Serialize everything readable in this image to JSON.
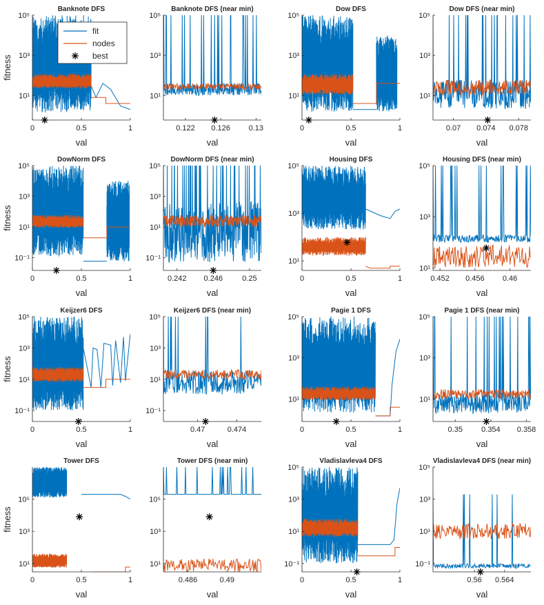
{
  "colors": {
    "fit": "#0072BD",
    "nodes": "#D95319",
    "best": "#000000",
    "axis": "#262626"
  },
  "legend": {
    "entries": [
      "fit",
      "nodes",
      "best"
    ]
  },
  "chart_data": [
    {
      "type": "line",
      "title": "Banknote DFS",
      "xlabel": "val",
      "ylabel": "fitness",
      "xlim": [
        0,
        1
      ],
      "ylim": [
        0.6,
        100000
      ],
      "xticks": [
        0,
        0.5,
        1
      ],
      "xticklabels": [
        "0",
        "0.5",
        "1"
      ],
      "yticks": [
        10,
        1000,
        100000
      ],
      "yticklabels": [
        "10¹",
        "10³",
        "10⁵"
      ],
      "best": {
        "x": 0.125,
        "y": 0.6
      },
      "style": "dense-left",
      "dense_end": 0.6,
      "fit_band": [
        0.8,
        100000
      ],
      "nodes_band": [
        20,
        120
      ],
      "fit_tail": [
        [
          0.6,
          30
        ],
        [
          0.65,
          8
        ],
        [
          0.72,
          40
        ],
        [
          0.8,
          20
        ],
        [
          0.9,
          3
        ],
        [
          1,
          2
        ]
      ],
      "nodes_tail": [
        [
          0.6,
          8
        ],
        [
          0.75,
          8
        ],
        [
          0.75,
          4
        ],
        [
          1,
          4
        ]
      ],
      "legend": true
    },
    {
      "type": "line",
      "title": "Banknote DFS (near min)",
      "xlabel": "val",
      "ylabel": "",
      "xlim": [
        0.1195,
        0.1306
      ],
      "ylim": [
        0.6,
        100000
      ],
      "xticks": [
        0.122,
        0.126,
        0.13
      ],
      "xticklabels": [
        "0.122",
        "0.126",
        "0.13"
      ],
      "yticks": [
        10,
        1000,
        100000
      ],
      "yticklabels": [
        "10¹",
        "10³",
        "10⁵"
      ],
      "best": {
        "x": 0.1253,
        "y": 0.6
      },
      "style": "sparse",
      "fit_base": [
        10,
        40
      ],
      "nodes_base": [
        20,
        40
      ]
    },
    {
      "type": "line",
      "title": "Dow DFS",
      "xlabel": "val",
      "ylabel": "",
      "xlim": [
        0,
        1
      ],
      "ylim": [
        0.6,
        100000
      ],
      "xticks": [
        0,
        0.5,
        1
      ],
      "xticklabels": [
        "0",
        "0.5",
        "1"
      ],
      "yticks": [
        10,
        1000,
        100000
      ],
      "yticklabels": [
        "10¹",
        "10³",
        "10⁵"
      ],
      "best": {
        "x": 0.07,
        "y": 0.6
      },
      "style": "dense-split",
      "dense_end": 0.52,
      "block": [
        0.76,
        0.97
      ],
      "block_band": [
        1,
        10000
      ],
      "fit_band": [
        0.8,
        100000
      ],
      "nodes_band": [
        10,
        120
      ],
      "nodes_tail": [
        [
          0.52,
          4
        ],
        [
          0.76,
          4
        ],
        [
          0.76,
          40
        ],
        [
          1,
          40
        ]
      ]
    },
    {
      "type": "line",
      "title": "Dow DFS (near min)",
      "xlabel": "val",
      "ylabel": "",
      "xlim": [
        0.0675,
        0.0795
      ],
      "ylim": [
        0.6,
        100000
      ],
      "xticks": [
        0.07,
        0.074,
        0.078
      ],
      "xticklabels": [
        "0.07",
        "0.074",
        "0.078"
      ],
      "yticks": [
        10,
        1000,
        100000
      ],
      "yticklabels": [
        "10¹",
        "10³",
        "10⁵"
      ],
      "best": {
        "x": 0.0742,
        "y": 0.6
      },
      "style": "sparse",
      "fit_base": [
        2,
        60
      ],
      "nodes_base": [
        10,
        60
      ]
    },
    {
      "type": "line",
      "title": "DowNorm DFS",
      "xlabel": "val",
      "ylabel": "fitness",
      "xlim": [
        0,
        1
      ],
      "ylim": [
        0.015,
        100000
      ],
      "xticks": [
        0,
        0.5,
        1
      ],
      "xticklabels": [
        "0",
        "0.5",
        "1"
      ],
      "yticks": [
        0.1,
        10,
        1000,
        100000
      ],
      "yticklabels": [
        "10⁻¹",
        "10¹",
        "10³",
        "10⁵"
      ],
      "best": {
        "x": 0.245,
        "y": 0.015
      },
      "style": "dense-split",
      "dense_end": 0.52,
      "block": [
        0.76,
        0.99
      ],
      "block_band": [
        0.03,
        10000
      ],
      "fit_band": [
        0.06,
        100000
      ],
      "nodes_band": [
        8,
        60
      ],
      "nodes_tail": [
        [
          0.52,
          2
        ],
        [
          0.76,
          2
        ],
        [
          0.76,
          10
        ],
        [
          1,
          10
        ]
      ]
    },
    {
      "type": "line",
      "title": "DowNorm DFS (near min)",
      "xlabel": "val",
      "ylabel": "",
      "xlim": [
        0.2405,
        0.2513
      ],
      "ylim": [
        0.015,
        100000
      ],
      "xticks": [
        0.242,
        0.246,
        0.25
      ],
      "xticklabels": [
        "0.242",
        "0.246",
        "0.25"
      ],
      "yticks": [
        0.1,
        10,
        1000,
        100000
      ],
      "yticklabels": [
        "10⁻¹",
        "10¹",
        "10³",
        "10⁵"
      ],
      "best": {
        "x": 0.246,
        "y": 0.015
      },
      "style": "dense-noisy",
      "fit_base": [
        0.05,
        500
      ],
      "nodes_base": [
        10,
        60
      ]
    },
    {
      "type": "line",
      "title": "Housing DFS",
      "xlabel": "val",
      "ylabel": "",
      "xlim": [
        0,
        1
      ],
      "ylim": [
        4,
        100000
      ],
      "xticks": [
        0,
        0.5,
        1
      ],
      "xticklabels": [
        "0",
        "0.5",
        "1"
      ],
      "yticks": [
        10,
        1000,
        100000
      ],
      "yticklabels": [
        "10¹",
        "10³",
        "10⁵"
      ],
      "best": {
        "x": 0.46,
        "y": 60
      },
      "style": "dense-housing",
      "dense_end": 0.65,
      "fit_band": [
        150,
        100000
      ],
      "nodes_band": [
        15,
        100
      ],
      "fit_tail": [
        [
          0.65,
          1500
        ],
        [
          0.8,
          800
        ],
        [
          0.9,
          600
        ],
        [
          0.95,
          1200
        ],
        [
          1,
          1500
        ]
      ],
      "nodes_tail": [
        [
          0.65,
          6
        ],
        [
          0.7,
          5
        ],
        [
          0.9,
          5
        ],
        [
          0.9,
          6
        ],
        [
          1,
          6
        ]
      ]
    },
    {
      "type": "line",
      "title": "Housing DFS (near min)",
      "xlabel": "val",
      "ylabel": "",
      "xlim": [
        0.4512,
        0.4624
      ],
      "ylim": [
        8,
        100000
      ],
      "xticks": [
        0.452,
        0.456,
        0.46
      ],
      "xticklabels": [
        "0.452",
        "0.456",
        "0.46"
      ],
      "yticks": [
        10,
        1000,
        100000
      ],
      "yticklabels": [
        "10¹",
        "10³",
        "10⁵"
      ],
      "best": {
        "x": 0.4573,
        "y": 60
      },
      "style": "sparse-housing",
      "fit_base": [
        100,
        200
      ],
      "nodes_base": [
        10,
        80
      ]
    },
    {
      "type": "line",
      "title": "Keijzer6 DFS",
      "xlabel": "val",
      "ylabel": "fitness",
      "xlim": [
        0,
        1
      ],
      "ylim": [
        0.02,
        100000
      ],
      "xticks": [
        0,
        0.5,
        1
      ],
      "xticklabels": [
        "0",
        "0.5",
        "1"
      ],
      "yticks": [
        0.1,
        10,
        1000,
        100000
      ],
      "yticklabels": [
        "10⁻¹",
        "10¹",
        "10³",
        "10⁵"
      ],
      "best": {
        "x": 0.47,
        "y": 0.02
      },
      "style": "dense-left",
      "dense_end": 0.52,
      "fit_band": [
        0.05,
        100000
      ],
      "nodes_band": [
        6,
        60
      ],
      "fit_tail": [
        [
          0.52,
          1000
        ],
        [
          0.6,
          3
        ],
        [
          0.62,
          1000
        ],
        [
          0.66,
          800
        ],
        [
          0.7,
          3
        ],
        [
          0.73,
          2000
        ],
        [
          0.8,
          1500
        ],
        [
          0.82,
          4
        ],
        [
          0.85,
          3000
        ],
        [
          0.9,
          6
        ],
        [
          0.93,
          5000
        ],
        [
          0.95,
          8
        ],
        [
          1,
          8000
        ]
      ],
      "nodes_tail": [
        [
          0.52,
          3
        ],
        [
          0.75,
          3
        ],
        [
          0.75,
          10
        ],
        [
          1,
          10
        ]
      ]
    },
    {
      "type": "line",
      "title": "Keijzer6 DFS (near min)",
      "xlabel": "val",
      "ylabel": "",
      "xlim": [
        0.4665,
        0.4765
      ],
      "ylim": [
        0.02,
        100000
      ],
      "xticks": [
        0.47,
        0.474
      ],
      "xticklabels": [
        "0.47",
        "0.474"
      ],
      "yticks": [
        0.1,
        10,
        1000,
        100000
      ],
      "yticklabels": [
        "10⁻¹",
        "10¹",
        "10³",
        "10⁵"
      ],
      "best": {
        "x": 0.4708,
        "y": 0.02
      },
      "style": "keijzer-near",
      "fit_base": [
        1,
        40
      ],
      "nodes_base": [
        10,
        40
      ]
    },
    {
      "type": "line",
      "title": "Pagie 1 DFS",
      "xlabel": "val",
      "ylabel": "",
      "xlim": [
        0,
        1
      ],
      "ylim": [
        0.8,
        100000
      ],
      "xticks": [
        0,
        0.5,
        1
      ],
      "xticklabels": [
        "0",
        "0.5",
        "1"
      ],
      "yticks": [
        10,
        1000,
        100000
      ],
      "yticklabels": [
        "10¹",
        "10³",
        "10⁵"
      ],
      "best": {
        "x": 0.35,
        "y": 0.8
      },
      "style": "dense-left",
      "dense_end": 0.75,
      "fit_band": [
        1.2,
        100000
      ],
      "nodes_band": [
        8,
        40
      ],
      "fit_tail": [
        [
          0.75,
          1.5
        ],
        [
          0.9,
          1.5
        ],
        [
          0.92,
          50
        ],
        [
          0.96,
          2000
        ],
        [
          1,
          8000
        ]
      ],
      "nodes_tail": [
        [
          0.75,
          1.5
        ],
        [
          0.9,
          1.5
        ],
        [
          0.9,
          4
        ],
        [
          1,
          4
        ]
      ]
    },
    {
      "type": "line",
      "title": "Pagie 1 DFS (near min)",
      "xlabel": "val",
      "ylabel": "",
      "xlim": [
        0.3475,
        0.3585
      ],
      "ylim": [
        0.8,
        100000
      ],
      "xticks": [
        0.35,
        0.354,
        0.358
      ],
      "xticklabels": [
        "0.35",
        "0.354",
        "0.358"
      ],
      "yticks": [
        10,
        1000,
        100000
      ],
      "yticklabels": [
        "10¹",
        "10³",
        "10⁵"
      ],
      "best": {
        "x": 0.3535,
        "y": 0.8
      },
      "style": "sparse",
      "fit_base": [
        2,
        20
      ],
      "nodes_base": [
        10,
        30
      ]
    },
    {
      "type": "line",
      "title": "Tower DFS",
      "xlabel": "val",
      "ylabel": "fitness",
      "xlim": [
        0,
        1
      ],
      "ylim": [
        3,
        10000000
      ],
      "xticks": [
        0,
        0.5,
        1
      ],
      "xticklabels": [
        "0",
        "0.5",
        "1"
      ],
      "yticks": [
        10,
        1000,
        100000
      ],
      "yticklabels": [
        "10¹",
        "10³",
        "10⁵"
      ],
      "best": {
        "x": 0.48,
        "y": 8000
      },
      "style": "dense-tower",
      "dense_end": 0.35,
      "fit_band": [
        100000,
        10000000
      ],
      "nodes_band": [
        5,
        40
      ],
      "fit_tail": [
        [
          0.5,
          200000
        ],
        [
          0.9,
          200000
        ],
        [
          0.95,
          150000
        ],
        [
          1,
          100000
        ]
      ],
      "nodes_tail": [
        [
          0.6,
          3
        ],
        [
          0.95,
          3
        ],
        [
          0.95,
          6
        ],
        [
          1,
          6
        ]
      ]
    },
    {
      "type": "line",
      "title": "Tower DFS (near min)",
      "xlabel": "val",
      "ylabel": "",
      "xlim": [
        0.4835,
        0.4935
      ],
      "ylim": [
        3,
        10000000
      ],
      "xticks": [
        0.486,
        0.49
      ],
      "xticklabels": [
        "0.486",
        "0.49"
      ],
      "yticks": [
        10,
        1000,
        100000
      ],
      "yticklabels": [
        "10¹",
        "10³",
        "10⁵"
      ],
      "best": {
        "x": 0.4882,
        "y": 8000
      },
      "style": "sparse-tower",
      "fit_base": [
        200000,
        200000
      ],
      "nodes_base": [
        3,
        20
      ]
    },
    {
      "type": "line",
      "title": "Vladislavleva4 DFS",
      "xlabel": "val",
      "ylabel": "",
      "xlim": [
        0,
        1
      ],
      "ylim": [
        0.03,
        100000
      ],
      "xticks": [
        0,
        0.5,
        1
      ],
      "xticklabels": [
        "0",
        "0.5",
        "1"
      ],
      "yticks": [
        0.1,
        10,
        1000,
        100000
      ],
      "yticklabels": [
        "10⁻¹",
        "10¹",
        "10³",
        "10⁵"
      ],
      "best": {
        "x": 0.56,
        "y": 0.03
      },
      "style": "dense-left",
      "dense_end": 0.57,
      "fit_band": [
        0.05,
        100000
      ],
      "nodes_band": [
        4,
        60
      ],
      "fit_tail": [
        [
          0.57,
          1.5
        ],
        [
          0.9,
          1.5
        ],
        [
          0.94,
          3
        ],
        [
          0.97,
          500
        ],
        [
          1,
          5000
        ]
      ],
      "nodes_tail": [
        [
          0.57,
          0.3
        ],
        [
          0.95,
          0.3
        ],
        [
          0.95,
          1
        ],
        [
          1,
          1
        ]
      ]
    },
    {
      "type": "line",
      "title": "Vladislavleva4 DFS (near min)",
      "xlabel": "val",
      "ylabel": "",
      "xlim": [
        0.5545,
        0.5675
      ],
      "ylim": [
        0.03,
        100000
      ],
      "xticks": [
        0.56,
        0.564
      ],
      "xticklabels": [
        "0.56",
        "0.564"
      ],
      "yticks": [
        0.1,
        10,
        1000,
        100000
      ],
      "yticklabels": [
        "10⁻¹",
        "10¹",
        "10³",
        "10⁵"
      ],
      "best": {
        "x": 0.5608,
        "y": 0.03
      },
      "style": "vlad-near",
      "fit_base": [
        0.05,
        0.1
      ],
      "nodes_base": [
        3,
        30
      ]
    }
  ]
}
